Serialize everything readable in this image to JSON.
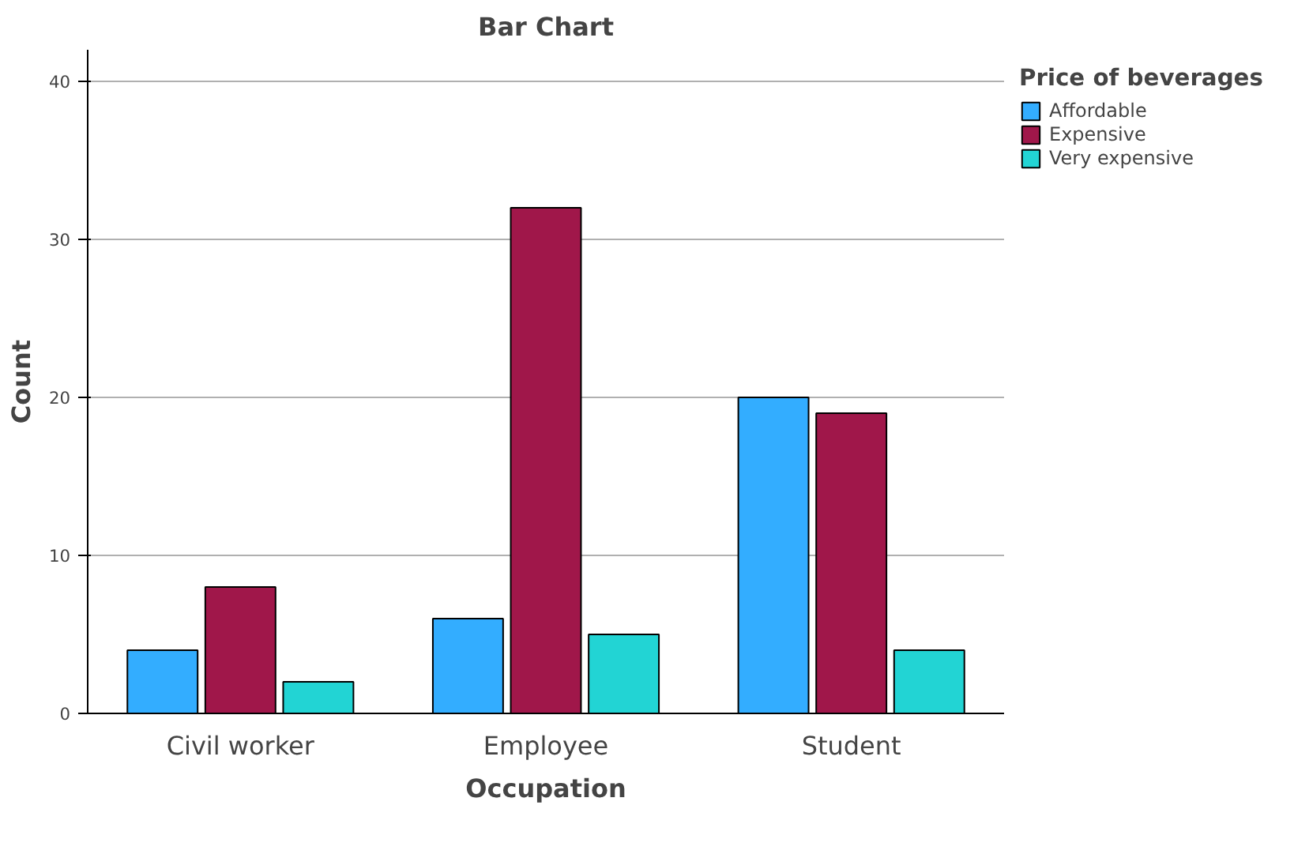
{
  "chart_data": {
    "type": "bar",
    "title": "Bar Chart",
    "xlabel": "Occupation",
    "ylabel": "Count",
    "legend_title": "Price of beverages",
    "categories": [
      "Civil worker",
      "Employee",
      "Student"
    ],
    "series": [
      {
        "name": "Affordable",
        "color": "#33adff",
        "values": [
          4,
          6,
          20
        ]
      },
      {
        "name": "Expensive",
        "color": "#a0174a",
        "values": [
          8,
          32,
          19
        ]
      },
      {
        "name": "Very expensive",
        "color": "#22d4d4",
        "values": [
          2,
          5,
          4
        ]
      }
    ],
    "ylim": [
      0,
      42
    ],
    "yticks": [
      0,
      10,
      20,
      30,
      40
    ],
    "grid": "y",
    "legend": "right"
  }
}
